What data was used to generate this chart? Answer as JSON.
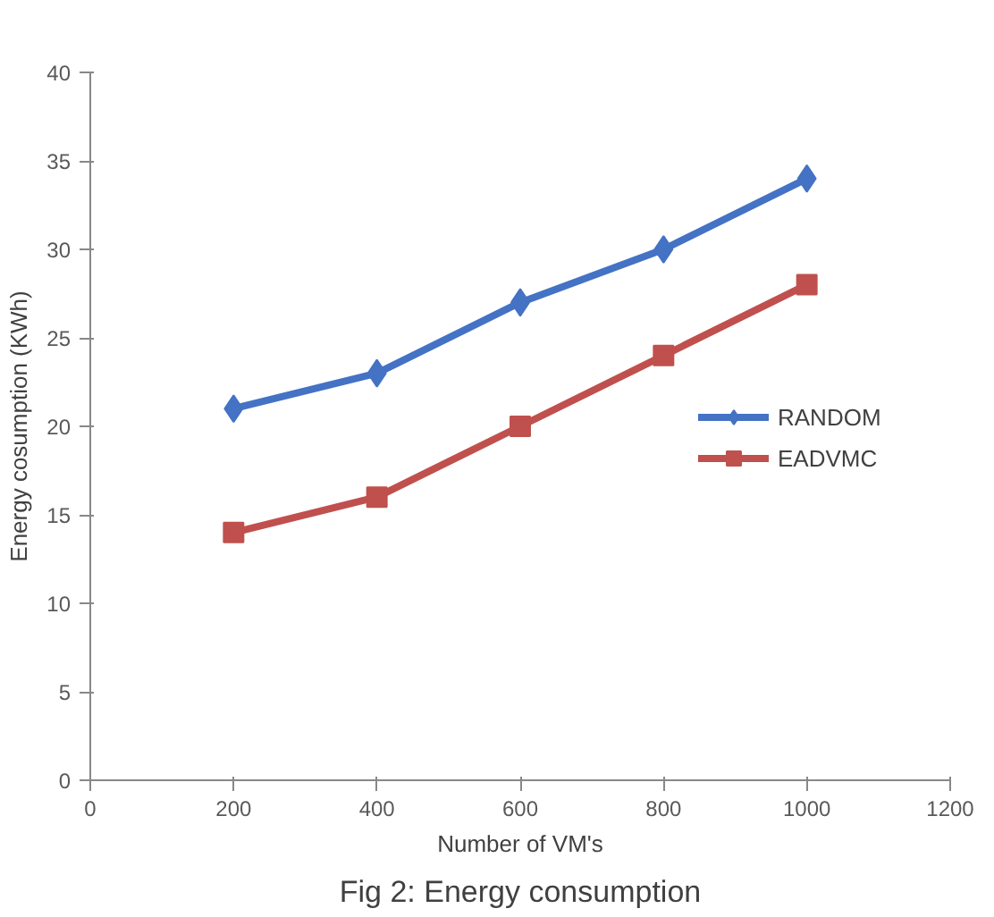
{
  "chart_data": {
    "type": "line",
    "xlabel": "Number of VM's",
    "ylabel": "Energy cosumption (KWh)",
    "x": [
      200,
      400,
      600,
      800,
      1000
    ],
    "series": [
      {
        "name": "RANDOM",
        "color": "#4472c4",
        "marker": "diamond",
        "values": [
          21,
          23,
          27,
          30,
          34
        ]
      },
      {
        "name": "EADVMC",
        "color": "#c0504d",
        "marker": "square",
        "values": [
          14,
          16,
          20,
          24,
          28
        ]
      }
    ],
    "xlim": [
      0,
      1200
    ],
    "xticks": [
      0,
      200,
      400,
      600,
      800,
      1000,
      1200
    ],
    "ylim": [
      0,
      40
    ],
    "yticks": [
      0,
      5,
      10,
      15,
      20,
      25,
      30,
      35,
      40
    ],
    "grid": false,
    "legend": "right",
    "line_style": "solid",
    "annotations": [
      "Fig 2: Energy consumption"
    ]
  }
}
